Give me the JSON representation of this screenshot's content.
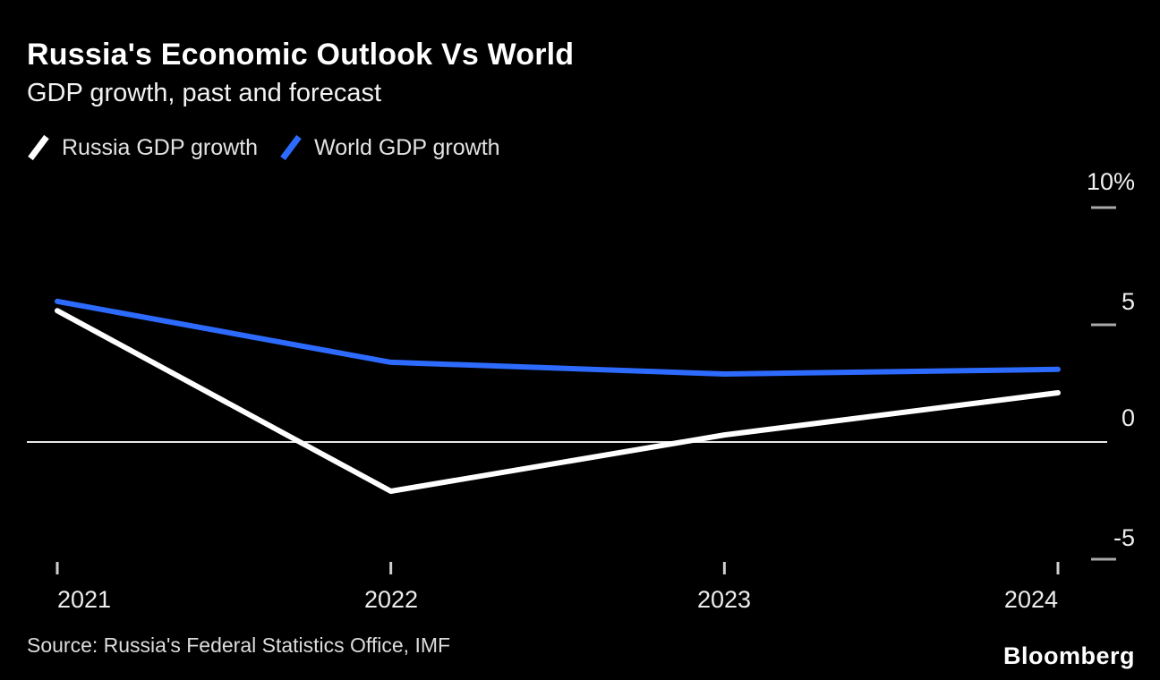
{
  "header": {
    "title": "Russia's Economic Outlook Vs World",
    "subtitle": "GDP growth, past and forecast"
  },
  "legend": [
    {
      "label": "Russia GDP growth",
      "color": "#ffffff"
    },
    {
      "label": "World GDP growth",
      "color": "#2d6bff"
    }
  ],
  "source": "Source: Russia's Federal Statistics Office, IMF",
  "brand": "Bloomberg",
  "chart_data": {
    "type": "line",
    "categories": [
      "2021",
      "2022",
      "2023",
      "2024"
    ],
    "series": [
      {
        "name": "Russia GDP growth",
        "color": "#ffffff",
        "values": [
          5.6,
          -2.1,
          0.3,
          2.1
        ]
      },
      {
        "name": "World GDP growth",
        "color": "#2d6bff",
        "values": [
          6.0,
          3.4,
          2.9,
          3.1
        ]
      }
    ],
    "y_ticks": [
      {
        "value": 10,
        "label": "10%"
      },
      {
        "value": 5,
        "label": "5"
      },
      {
        "value": 0,
        "label": "0"
      },
      {
        "value": -5,
        "label": "-5"
      }
    ],
    "ylim": [
      -6.5,
      11
    ],
    "ylabel": "",
    "xlabel": "",
    "unit": "%",
    "grid": "zero-line-only",
    "legend_position": "top-left"
  }
}
